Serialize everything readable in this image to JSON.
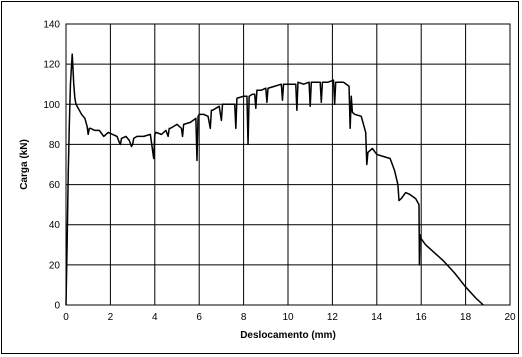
{
  "chart_data": {
    "type": "line",
    "title": "",
    "xlabel": "Deslocamento (mm)",
    "ylabel": "Carga (kN)",
    "xlim": [
      0,
      20
    ],
    "ylim": [
      0,
      140
    ],
    "x_ticks": [
      0,
      2,
      4,
      6,
      8,
      10,
      12,
      14,
      16,
      18,
      20
    ],
    "y_ticks": [
      0,
      20,
      40,
      60,
      80,
      100,
      120,
      140
    ],
    "x_tick_labels": [
      "0",
      "2",
      "4",
      "6",
      "8",
      "10",
      "12",
      "14",
      "16",
      "18",
      "20"
    ],
    "y_tick_labels": [
      "0",
      "20",
      "40",
      "60",
      "80",
      "100",
      "120",
      "140"
    ],
    "grid": true,
    "legend": "none",
    "line_color": "#000000",
    "series": [
      {
        "x": [
          0.0,
          0.05,
          0.1,
          0.15,
          0.2,
          0.28,
          0.35,
          0.4,
          0.45,
          0.55,
          0.7,
          0.85,
          0.95,
          1.0,
          1.05,
          1.1,
          1.3,
          1.5,
          1.7,
          1.9,
          2.1,
          2.3,
          2.4,
          2.45,
          2.5,
          2.7,
          2.85,
          2.95,
          3.0,
          3.05,
          3.2,
          3.5,
          3.8,
          3.95,
          4.0,
          4.05,
          4.3,
          4.5,
          4.6,
          4.65,
          4.7,
          5.0,
          5.2,
          5.25,
          5.3,
          5.6,
          5.85,
          5.9,
          5.95,
          6.0,
          6.2,
          6.4,
          6.5,
          6.55,
          6.6,
          6.9,
          7.0,
          7.05,
          7.1,
          7.4,
          7.6,
          7.65,
          7.7,
          8.0,
          8.15,
          8.2,
          8.25,
          8.4,
          8.5,
          8.55,
          8.6,
          8.8,
          9.0,
          9.05,
          9.1,
          9.4,
          9.7,
          9.75,
          9.8,
          10.0,
          10.35,
          10.4,
          10.45,
          10.7,
          10.95,
          11.0,
          11.05,
          11.3,
          11.45,
          11.5,
          11.55,
          11.8,
          12.05,
          12.1,
          12.15,
          12.5,
          12.75,
          12.8,
          12.85,
          12.9,
          13.0,
          13.3,
          13.5,
          13.55,
          13.6,
          13.8,
          14.0,
          14.3,
          14.6,
          14.8,
          14.95,
          15.0,
          15.1,
          15.3,
          15.5,
          15.75,
          15.9,
          15.92,
          15.95,
          16.0,
          16.2,
          16.5,
          17.0,
          17.5,
          18.0,
          18.5,
          18.8
        ],
        "y": [
          0,
          30,
          65,
          90,
          110,
          125,
          110,
          103,
          100,
          98,
          95,
          93,
          89,
          85,
          88,
          88,
          87,
          87,
          84,
          86,
          85,
          84,
          81,
          80,
          83,
          84,
          82,
          79,
          80,
          83,
          84,
          84,
          85,
          73,
          85,
          86,
          85,
          87,
          84,
          88,
          88,
          90,
          88,
          84,
          90,
          91,
          93,
          72,
          94,
          95,
          95,
          94,
          88,
          97,
          97,
          99,
          92,
          100,
          100,
          100,
          100,
          88,
          103,
          104,
          104,
          80,
          104,
          105,
          105,
          98,
          107,
          107,
          108,
          101,
          108,
          109,
          110,
          102,
          110,
          110,
          110,
          97,
          111,
          110,
          111,
          99,
          111,
          111,
          111,
          101,
          111,
          111,
          112,
          100,
          111,
          111,
          109,
          88,
          104,
          96,
          95,
          94,
          86,
          70,
          76,
          78,
          75,
          74,
          73,
          67,
          60,
          52,
          53,
          56,
          55,
          53,
          50,
          20,
          35,
          33,
          30,
          27,
          22,
          16,
          9,
          3,
          0
        ]
      }
    ]
  }
}
